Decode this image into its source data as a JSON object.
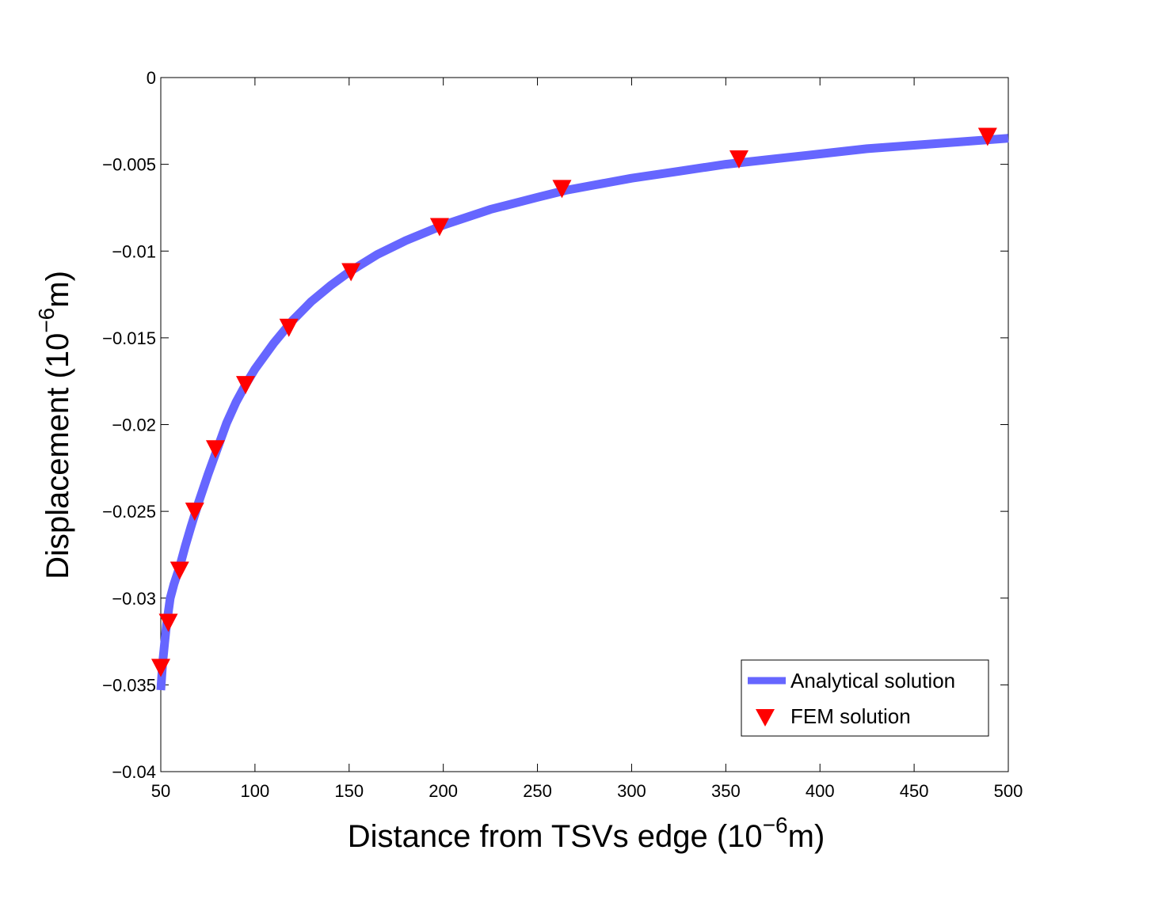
{
  "chart_data": {
    "type": "line",
    "xlabel_main": "Distance from TSVs edge (10",
    "xlabel_exp": "−6",
    "xlabel_unit": "m)",
    "ylabel_main": "Displacement (10",
    "ylabel_exp": "−6",
    "ylabel_unit": "m)",
    "xlim": [
      50,
      500
    ],
    "ylim": [
      -0.04,
      0
    ],
    "xticks": [
      50,
      100,
      150,
      200,
      250,
      300,
      350,
      400,
      450,
      500
    ],
    "xtick_labels": [
      "50",
      "100",
      "150",
      "200",
      "250",
      "300",
      "350",
      "400",
      "450",
      "500"
    ],
    "yticks": [
      0,
      -0.005,
      -0.01,
      -0.015,
      -0.02,
      -0.025,
      -0.03,
      -0.035,
      -0.04
    ],
    "ytick_labels": [
      "0",
      "−0.005",
      "−0.01",
      "−0.015",
      "−0.02",
      "−0.025",
      "−0.03",
      "−0.035",
      "−0.04"
    ],
    "grid": false,
    "legend_position": "bottom-right",
    "series": [
      {
        "name": "Analytical solution",
        "style": "line",
        "color": "#6666ff",
        "x": [
          50,
          51,
          52,
          53,
          54,
          55,
          57,
          60,
          63,
          66,
          70,
          75,
          80,
          85,
          90,
          95,
          100,
          110,
          120,
          130,
          140,
          150,
          165,
          180,
          200,
          225,
          250,
          265,
          280,
          300,
          325,
          350,
          375,
          400,
          425,
          450,
          475,
          500
        ],
        "y": [
          -0.0353,
          -0.0337,
          -0.0326,
          -0.0316,
          -0.0308,
          -0.03,
          -0.0292,
          -0.0282,
          -0.027,
          -0.0259,
          -0.0245,
          -0.0229,
          -0.0214,
          -0.0199,
          -0.0187,
          -0.0177,
          -0.0168,
          -0.0153,
          -0.014,
          -0.0129,
          -0.012,
          -0.0112,
          -0.0102,
          -0.0094,
          -0.0085,
          -0.0076,
          -0.0069,
          -0.0065,
          -0.0062,
          -0.0058,
          -0.0054,
          -0.005,
          -0.0047,
          -0.0044,
          -0.0041,
          -0.0039,
          -0.0037,
          -0.0035
        ]
      },
      {
        "name": "FEM solution",
        "style": "marker",
        "color": "#ff0000",
        "x": [
          50,
          54,
          60,
          68,
          79,
          95,
          118,
          151,
          198,
          263,
          357,
          489
        ],
        "y": [
          -0.034,
          -0.0314,
          -0.0284,
          -0.025,
          -0.0214,
          -0.0177,
          -0.0144,
          -0.0112,
          -0.0086,
          -0.0064,
          -0.0047,
          -0.0034
        ]
      }
    ]
  }
}
